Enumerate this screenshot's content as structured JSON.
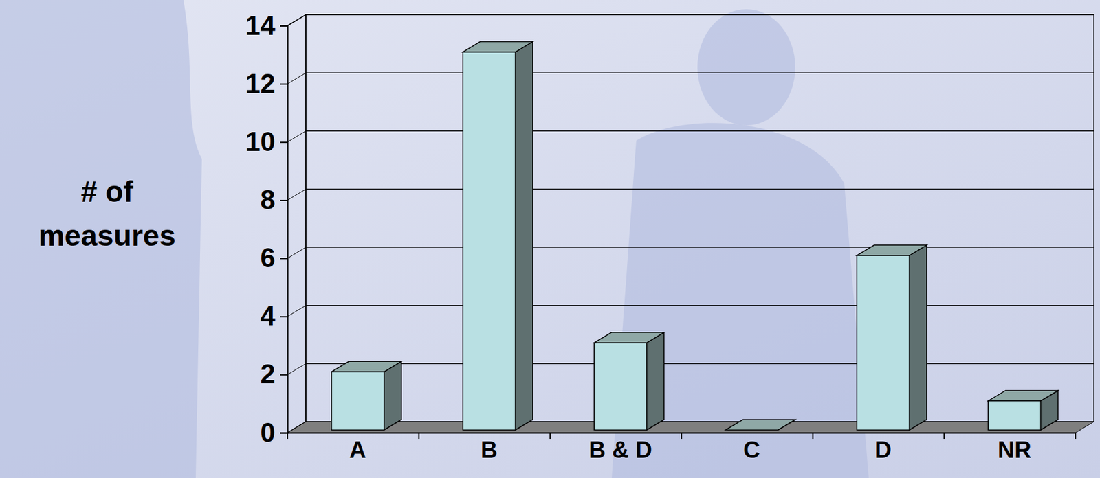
{
  "chart_data": {
    "type": "bar",
    "y_label": "# of measures",
    "categories": [
      "A",
      "B",
      "B & D",
      "C",
      "D",
      "NR"
    ],
    "values": [
      2,
      13,
      3,
      0,
      6,
      1
    ],
    "color": "#b9e0e3",
    "ylim": [
      0,
      14
    ],
    "yticks": [
      0,
      2,
      4,
      6,
      8,
      10,
      12,
      14
    ],
    "grid": true
  }
}
